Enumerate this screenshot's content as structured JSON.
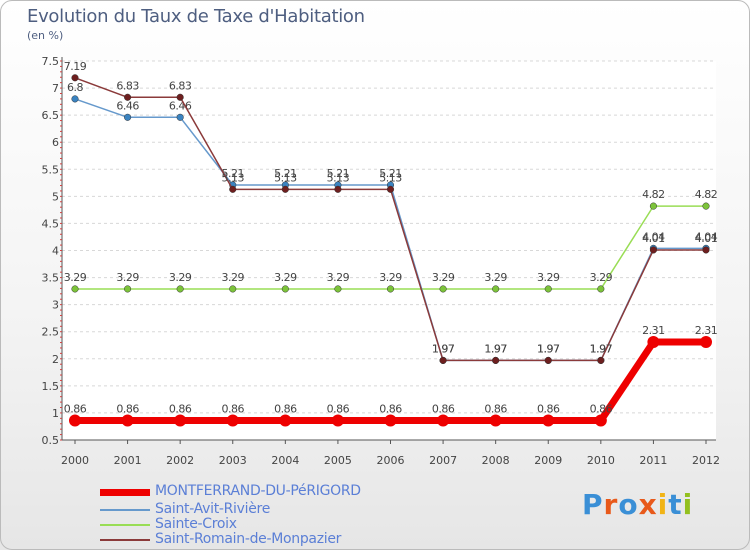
{
  "header": {
    "title": "Evolution du Taux de Taxe d'Habitation",
    "unit": "(en %)"
  },
  "logo": {
    "text": "Proxiti",
    "colors": [
      "#3a8fd6",
      "#e8591a",
      "#3a8fd6",
      "#e8591a",
      "#f1b416",
      "#3a8fd6",
      "#93c01f"
    ]
  },
  "chart_data": {
    "type": "line",
    "title": "Evolution du Taux de Taxe d'Habitation",
    "ylabel": "(en %)",
    "xlabel": "",
    "ylim": [
      0.5,
      7.5
    ],
    "yticks": [
      "0.5",
      "1",
      "1.5",
      "2",
      "2.5",
      "3",
      "3.5",
      "4",
      "4.5",
      "5",
      "5.5",
      "6",
      "6.5",
      "7",
      "7.5"
    ],
    "categories": [
      "2000",
      "2001",
      "2002",
      "2003",
      "2004",
      "2005",
      "2006",
      "2007",
      "2008",
      "2009",
      "2010",
      "2011",
      "2012"
    ],
    "grid": "horizontal dashed",
    "legend_position": "bottom-left",
    "series": [
      {
        "name": "Sainte-Croix",
        "color": "#99dd55",
        "marker": "#7cc33a",
        "values": [
          3.29,
          3.29,
          3.29,
          3.29,
          3.29,
          3.29,
          3.29,
          3.29,
          3.29,
          3.29,
          3.29,
          4.82,
          4.82
        ],
        "labels": [
          "3.29",
          "3.29",
          "3.29",
          "3.29",
          "3.29",
          "3.29",
          "3.29",
          "3.29",
          "3.29",
          "3.29",
          "3.29",
          "4.82",
          "4.82"
        ]
      },
      {
        "name": "Saint-Avit-Rivière",
        "color": "#6699cc",
        "marker": "#3b83c0",
        "values": [
          6.8,
          6.46,
          6.46,
          5.21,
          5.21,
          5.21,
          5.21,
          1.97,
          1.97,
          1.97,
          1.97,
          4.04,
          4.04
        ],
        "labels": [
          "6.8",
          "6.46",
          "6.46",
          "5.21",
          "5.21",
          "5.21",
          "5.21",
          "1.97",
          "1.97",
          "1.97",
          "1.97",
          "4.04",
          "4.04"
        ]
      },
      {
        "name": "Saint-Romain-de-Monpazier",
        "color": "#8b3a3a",
        "marker": "#6e1f1f",
        "values": [
          7.19,
          6.83,
          6.83,
          5.13,
          5.13,
          5.13,
          5.13,
          1.97,
          1.97,
          1.97,
          1.97,
          4.01,
          4.01
        ],
        "labels": [
          "7.19",
          "6.83",
          "6.83",
          "5.13",
          "5.13",
          "5.13",
          "5.13",
          "1.97",
          "1.97",
          "1.97",
          "1.97",
          "4.01",
          "4.01"
        ]
      },
      {
        "name": "MONTFERRAND-DU-PéRIGORD",
        "color": "#ee0000",
        "marker": "#ee0000",
        "values": [
          0.86,
          0.86,
          0.86,
          0.86,
          0.86,
          0.86,
          0.86,
          0.86,
          0.86,
          0.86,
          0.86,
          2.31,
          2.31
        ],
        "labels": [
          "0.86",
          "0.86",
          "0.86",
          "0.86",
          "0.86",
          "0.86",
          "0.86",
          "0.86",
          "0.86",
          "0.86",
          "0.86",
          "2.31",
          "2.31"
        ]
      }
    ],
    "legend": [
      {
        "name": "MONTFERRAND-DU-PéRIGORD",
        "color": "#ee0000"
      },
      {
        "name": "Saint-Avit-Rivière",
        "color": "#6699cc"
      },
      {
        "name": "Sainte-Croix",
        "color": "#99dd55"
      },
      {
        "name": "Saint-Romain-de-Monpazier",
        "color": "#8b3a3a"
      }
    ]
  }
}
